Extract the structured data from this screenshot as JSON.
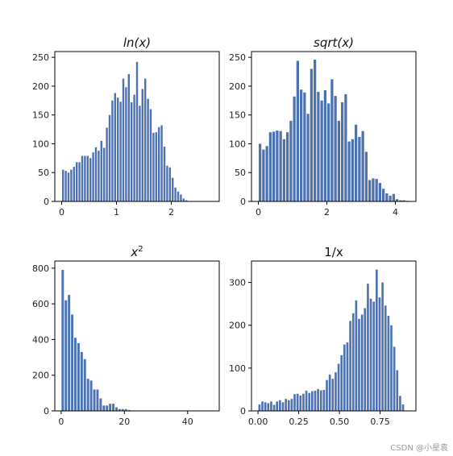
{
  "colors": {
    "bar": "#4c72b0",
    "axis": "#000000",
    "text": "#222222"
  },
  "watermark": "CSDN @小星袁",
  "chart_data": [
    {
      "type": "bar",
      "title": "ln(x)",
      "title_italic": true,
      "xlim": [
        -0.125,
        2.875
      ],
      "ylim": [
        0,
        260
      ],
      "xticks": [
        0,
        1,
        2
      ],
      "xtick_labels": [
        "0",
        "1",
        "2"
      ],
      "yticks": [
        0,
        50,
        100,
        150,
        200,
        250
      ],
      "ytick_labels": [
        "0",
        "50",
        "100",
        "150",
        "200",
        "250"
      ],
      "bin_start": 0.0,
      "bin_width": 0.05,
      "values": [
        55,
        53,
        50,
        55,
        60,
        68,
        68,
        79,
        79,
        79,
        75,
        85,
        94,
        88,
        105,
        93,
        128,
        150,
        175,
        188,
        180,
        173,
        213,
        198,
        221,
        172,
        185,
        242,
        166,
        195,
        213,
        178,
        160,
        119,
        120,
        129,
        132,
        95,
        62,
        59,
        41,
        24,
        17,
        12,
        5,
        2
      ]
    },
    {
      "type": "bar",
      "title": "sqrt(x)",
      "title_italic": true,
      "xlim": [
        -0.2,
        4.6
      ],
      "ylim": [
        0,
        260
      ],
      "xticks": [
        0,
        2,
        4
      ],
      "xtick_labels": [
        "0",
        "2",
        "4"
      ],
      "yticks": [
        0,
        50,
        100,
        150,
        200,
        250
      ],
      "ytick_labels": [
        "0",
        "50",
        "100",
        "150",
        "200",
        "250"
      ],
      "bin_start": 0.0,
      "bin_width": 0.1,
      "values": [
        100,
        90,
        96,
        120,
        121,
        123,
        122,
        108,
        120,
        140,
        182,
        244,
        194,
        189,
        152,
        230,
        246,
        190,
        175,
        193,
        170,
        212,
        183,
        140,
        172,
        186,
        104,
        108,
        133,
        112,
        122,
        86,
        37,
        40,
        39,
        32,
        22,
        14,
        10,
        13,
        4,
        2,
        2,
        1
      ]
    },
    {
      "type": "bar",
      "title": "x²",
      "title_base": "x",
      "title_sup": "2",
      "title_italic": true,
      "xlim": [
        -2,
        50
      ],
      "ylim": [
        0,
        840
      ],
      "xticks": [
        0,
        20,
        40
      ],
      "xtick_labels": [
        "0",
        "20",
        "40"
      ],
      "yticks": [
        0,
        200,
        400,
        600,
        800
      ],
      "ytick_labels": [
        "0",
        "200",
        "400",
        "600",
        "800"
      ],
      "bin_start": 0.0,
      "bin_width": 1.0,
      "values": [
        790,
        620,
        650,
        540,
        410,
        380,
        330,
        290,
        180,
        170,
        120,
        120,
        70,
        30,
        30,
        40,
        40,
        20,
        10,
        10,
        10,
        5,
        2,
        1
      ]
    },
    {
      "type": "bar",
      "title": "1/x",
      "title_italic": false,
      "xlim": [
        -0.04,
        0.97
      ],
      "ylim": [
        0,
        350
      ],
      "xticks": [
        0.0,
        0.25,
        0.5,
        0.75
      ],
      "xtick_labels": [
        "0.00",
        "0.25",
        "0.50",
        "0.75"
      ],
      "yticks": [
        0,
        100,
        200,
        300
      ],
      "ytick_labels": [
        "0",
        "100",
        "200",
        "300"
      ],
      "bin_start": 0.0,
      "bin_width": 0.018,
      "values": [
        15,
        22,
        20,
        18,
        22,
        14,
        22,
        25,
        20,
        28,
        25,
        28,
        39,
        40,
        36,
        40,
        47,
        42,
        46,
        47,
        51,
        48,
        49,
        72,
        85,
        75,
        90,
        110,
        130,
        155,
        160,
        210,
        228,
        258,
        215,
        225,
        240,
        297,
        262,
        255,
        330,
        265,
        300,
        246,
        222,
        200,
        150,
        95,
        35,
        15
      ]
    }
  ]
}
